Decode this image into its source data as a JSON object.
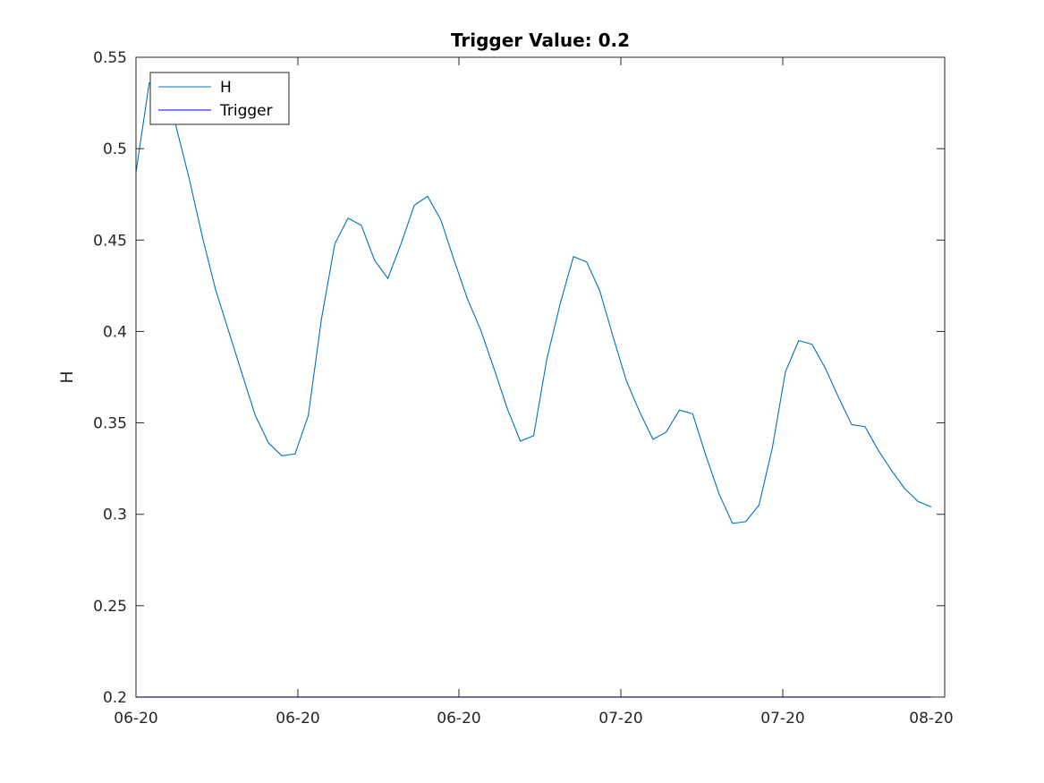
{
  "chart_data": {
    "type": "line",
    "title": "Trigger Value: 0.2",
    "xlabel": "",
    "ylabel": "H",
    "ylim": [
      0.2,
      0.55
    ],
    "yticks": [
      "0.2",
      "0.25",
      "0.3",
      "0.35",
      "0.4",
      "0.45",
      "0.5",
      "0.55"
    ],
    "xtick_labels": [
      "06-20",
      "06-20",
      "06-20",
      "07-20",
      "07-20",
      "08-20"
    ],
    "grid": false,
    "legend_placement": "top-left",
    "series": [
      {
        "name": "H",
        "color": "#0072BD",
        "values": [
          0.487,
          0.536,
          0.535,
          0.513,
          0.484,
          0.452,
          0.423,
          0.4,
          0.377,
          0.354,
          0.339,
          0.332,
          0.333,
          0.354,
          0.407,
          0.448,
          0.462,
          0.458,
          0.439,
          0.429,
          0.448,
          0.469,
          0.474,
          0.461,
          0.439,
          0.418,
          0.401,
          0.38,
          0.358,
          0.34,
          0.343,
          0.385,
          0.415,
          0.441,
          0.438,
          0.422,
          0.397,
          0.373,
          0.356,
          0.341,
          0.345,
          0.357,
          0.355,
          0.332,
          0.311,
          0.295,
          0.296,
          0.305,
          0.336,
          0.378,
          0.395,
          0.393,
          0.38,
          0.364,
          0.349,
          0.348,
          0.335,
          0.324,
          0.314,
          0.307,
          0.304
        ]
      },
      {
        "name": "Trigger",
        "color": "#0000FF",
        "values": [
          0.2,
          0.2
        ]
      }
    ]
  }
}
